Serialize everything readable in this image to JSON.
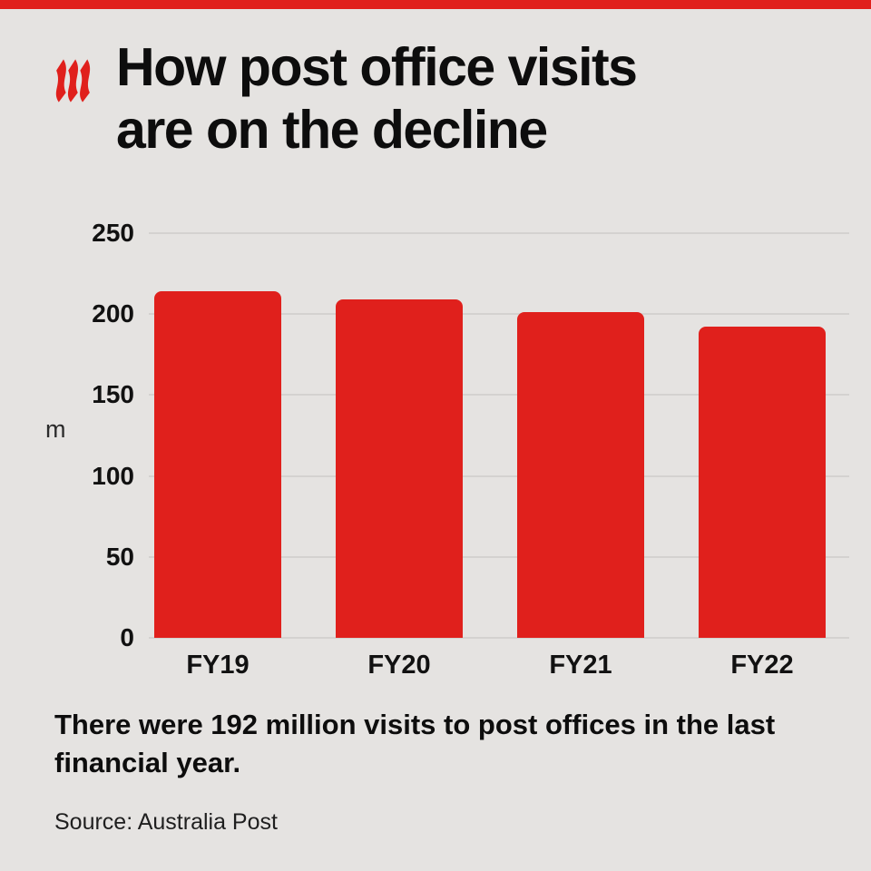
{
  "page": {
    "background": "#e5e3e1",
    "accent_red": "#e0201c"
  },
  "header": {
    "logo_icon": "sbs-flames-logo",
    "title_line1": "How post office visits",
    "title_line2": "are on the decline"
  },
  "chart_data": {
    "type": "bar",
    "title": "How post office visits are on the decline",
    "categories": [
      "FY19",
      "FY20",
      "FY21",
      "FY22"
    ],
    "values": [
      214,
      209,
      201,
      192
    ],
    "xlabel": "",
    "ylabel": "m",
    "ylim": [
      0,
      250
    ],
    "yticks": [
      0,
      50,
      100,
      150,
      200,
      250
    ],
    "bar_color": "#e0201c",
    "grid": true,
    "legend": "none"
  },
  "caption": {
    "text": "There were 192 million visits to post offices in the last financial year.",
    "source": "Source: Australia Post"
  }
}
